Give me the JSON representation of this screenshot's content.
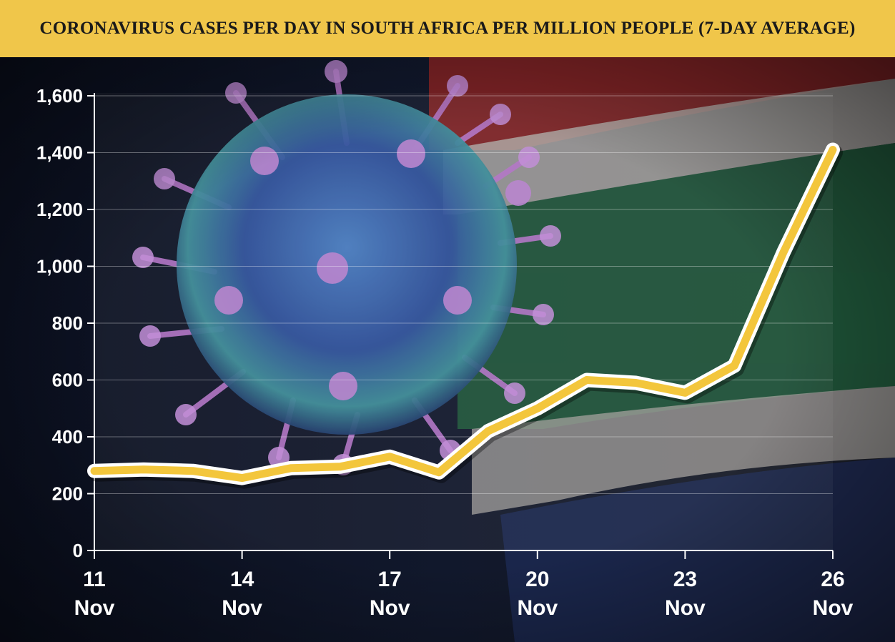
{
  "chart_data": {
    "type": "line",
    "title": "CORONAVIRUS CASES PER DAY IN SOUTH AFRICA PER MILLION PEOPLE (7-DAY AVERAGE)",
    "xlabel": "",
    "ylabel": "",
    "ylim": [
      0,
      1600
    ],
    "y_ticks": [
      0,
      200,
      400,
      600,
      800,
      1000,
      1200,
      1400,
      1600
    ],
    "y_tick_labels": [
      "0",
      "200",
      "400",
      "600",
      "800",
      "1,000",
      "1,200",
      "1,400",
      "1,600"
    ],
    "xlim": [
      11,
      26
    ],
    "x_ticks": [
      {
        "day": 11,
        "line1": "11",
        "line2": "Nov"
      },
      {
        "day": 14,
        "line1": "14",
        "line2": "Nov"
      },
      {
        "day": 17,
        "line1": "17",
        "line2": "Nov"
      },
      {
        "day": 20,
        "line1": "20",
        "line2": "Nov"
      },
      {
        "day": 23,
        "line1": "23",
        "line2": "Nov"
      },
      {
        "day": 26,
        "line1": "26",
        "line2": "Nov"
      }
    ],
    "x": [
      11,
      12,
      13,
      14,
      15,
      16,
      17,
      18,
      19,
      20,
      21,
      22,
      23,
      24,
      25,
      26
    ],
    "series": [
      {
        "values": [
          280,
          285,
          280,
          255,
          290,
          295,
          330,
          275,
          420,
          500,
          600,
          590,
          555,
          650,
          1050,
          1410
        ]
      }
    ],
    "grid": true,
    "colors": {
      "line": "#f3c63c",
      "line_outline": "#ffffff",
      "title_bg": "#f0c64a",
      "text": "#ffffff"
    }
  }
}
